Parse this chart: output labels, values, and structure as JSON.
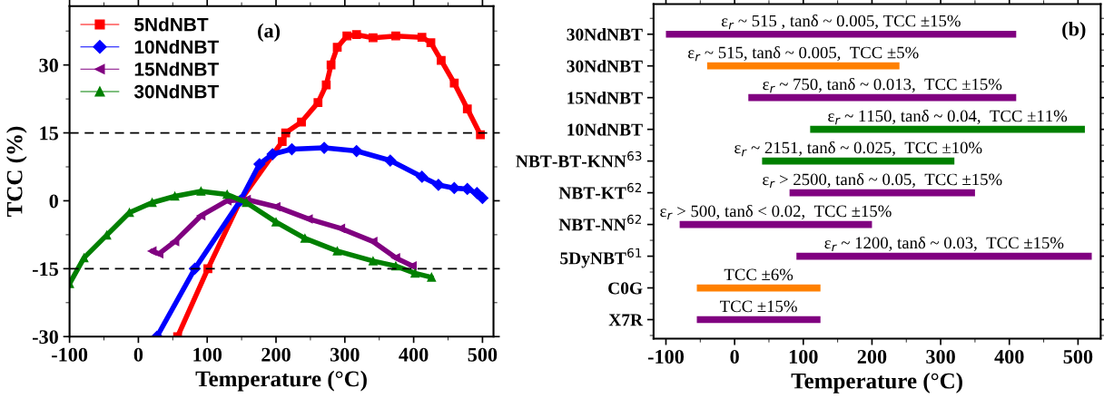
{
  "chart_data": [
    {
      "type": "line",
      "xlabel": "Temperature (°C)",
      "ylabel": "TCC (%)",
      "xlim": [
        -100,
        516
      ],
      "ylim": [
        -30,
        43
      ],
      "xticks": [
        -100,
        0,
        100,
        200,
        300,
        400,
        500
      ],
      "yticks": [
        -30,
        -15,
        0,
        15,
        30
      ],
      "legend": "top left",
      "annotations": [
        "(a)"
      ],
      "grid": false,
      "ref_lines": [
        {
          "axis": "y",
          "value": 15,
          "color": "#000000",
          "line_style": "dashed"
        },
        {
          "axis": "y",
          "value": -15,
          "color": "#000000",
          "line_style": "dashed"
        }
      ],
      "series": [
        {
          "name": "5NdNBT",
          "color": "#ff0000",
          "marker": "square",
          "x": [
            57,
            101,
            148,
            209,
            214,
            237,
            261,
            273,
            280,
            289,
            303,
            317,
            341,
            374,
            412,
            425,
            440,
            459,
            478,
            497
          ],
          "values": [
            -30,
            -15,
            0,
            13.1,
            15,
            17.4,
            21.7,
            25.6,
            30,
            33.9,
            36.4,
            36.7,
            36,
            36.4,
            36.1,
            34.9,
            31,
            26,
            20.3,
            14.6
          ]
        },
        {
          "name": "10NdNBT",
          "color": "#0000ff",
          "marker": "diamond",
          "x": [
            27,
            82,
            148,
            176,
            195,
            223,
            270,
            317,
            366,
            412,
            436,
            459,
            478,
            492,
            500
          ],
          "values": [
            -30,
            -15,
            0,
            8.1,
            10.3,
            11.4,
            11.7,
            11,
            8.9,
            5.3,
            3.5,
            2.8,
            2.6,
            1.7,
            0.6
          ]
        },
        {
          "name": "15NdNBT",
          "color": "#800080",
          "marker": "triangle_left",
          "x": [
            20,
            30,
            53,
            91,
            129,
            157,
            200,
            247,
            294,
            341,
            374,
            398
          ],
          "values": [
            -11.1,
            -11.7,
            -9,
            -3.3,
            0,
            0.3,
            -1.3,
            -4,
            -6.1,
            -9,
            -12.6,
            -14.4
          ]
        },
        {
          "name": "30NdNBT",
          "color": "#008000",
          "marker": "triangle",
          "x": [
            -100,
            -79,
            -46,
            -13,
            20,
            53,
            91,
            129,
            157,
            200,
            242,
            289,
            341,
            374,
            402,
            426
          ],
          "values": [
            -18.3,
            -12.6,
            -7.6,
            -2.6,
            -0.4,
            1,
            2.1,
            1.4,
            -0.4,
            -4.7,
            -8.3,
            -11.1,
            -13.3,
            -14.4,
            -16,
            -16.9
          ]
        }
      ]
    },
    {
      "type": "bar",
      "orientation": "horizontal",
      "xlabel": "Temperature (°C)",
      "xlim": [
        -118,
        533
      ],
      "xticks": [
        -100,
        0,
        100,
        200,
        300,
        400,
        500
      ],
      "annotations": [
        "(b)",
        "ε$_{r}$ ~ 515 , tanδ ~ 0.005, TCC ±15%",
        "ε$_{r}$ ~ 515, tanδ ~ 0.005,  TCC ±5%",
        "ε$_{r}$ ~ 750, tanδ ~ 0.013,  TCC ±15%",
        "ε$_{r}$ ~ 1150, tanδ ~ 0.04,  TCC ±11%",
        "ε$_{r}$ ~ 2151, tanδ ~ 0.025,  TCC ±10%",
        "ε$_{r}$ > 2500, tanδ ~ 0.05,  TCC ±15%",
        "ε$_{r}$ > 500, tanδ < 0.02,  TCC ±15%",
        "ε$_{r}$ ~ 1200, tanδ ~ 0.03,  TCC ±15%",
        "TCC ±6%",
        "TCC ±15%"
      ],
      "grid": false,
      "categories": [
        "30NdNBT",
        "30NdNBT",
        "15NdNBT",
        "10NdNBT",
        "NBT-BT-KNN$^{63}$",
        "NBT-KT$^{62}$",
        "NBT-NN$^{62}$",
        "5DyNBT$^{61}$",
        "C0G",
        "X7R"
      ],
      "base": [
        -100,
        -40,
        20,
        110,
        40,
        80,
        -80,
        90,
        -55,
        -55
      ],
      "values": [
        510,
        280,
        390,
        400,
        280,
        270,
        280,
        430,
        180,
        180
      ],
      "colors": [
        "#800080",
        "#ff8000",
        "#800080",
        "#008000",
        "#008000",
        "#800080",
        "#800080",
        "#800080",
        "#ff8000",
        "#800080"
      ]
    }
  ]
}
